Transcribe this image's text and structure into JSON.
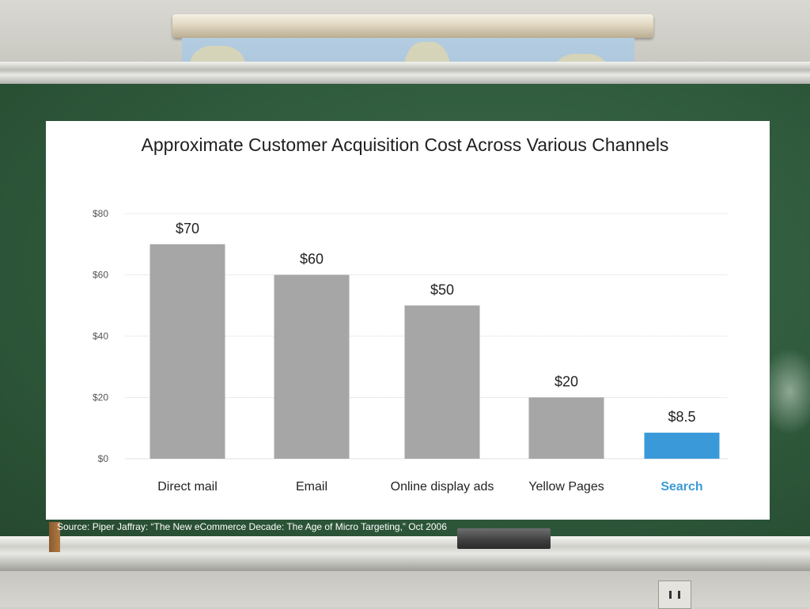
{
  "slide": {
    "source": "Source: Piper Jaffray: “The New eCommerce Decade: The Age of Micro Targeting,” Oct 2006"
  },
  "chart_data": {
    "type": "bar",
    "title": "Approximate Customer Acquisition Cost Across Various Channels",
    "xlabel": "",
    "ylabel": "",
    "ylim": [
      0,
      80
    ],
    "yticks": [
      "$0",
      "$20",
      "$40",
      "$60",
      "$80"
    ],
    "ytick_values": [
      0,
      20,
      40,
      60,
      80
    ],
    "grid": true,
    "legend": "none",
    "categories": [
      "Direct mail",
      "Email",
      "Online display ads",
      "Yellow Pages",
      "Search"
    ],
    "values": [
      70,
      60,
      50,
      20,
      8.5
    ],
    "data_labels": [
      "$70",
      "$60",
      "$50",
      "$20",
      "$8.5"
    ],
    "highlight_index": 4,
    "colors": {
      "bar": "#a6a6a6",
      "highlight": "#3a9ad9",
      "grid": "#d8d8d8"
    }
  }
}
